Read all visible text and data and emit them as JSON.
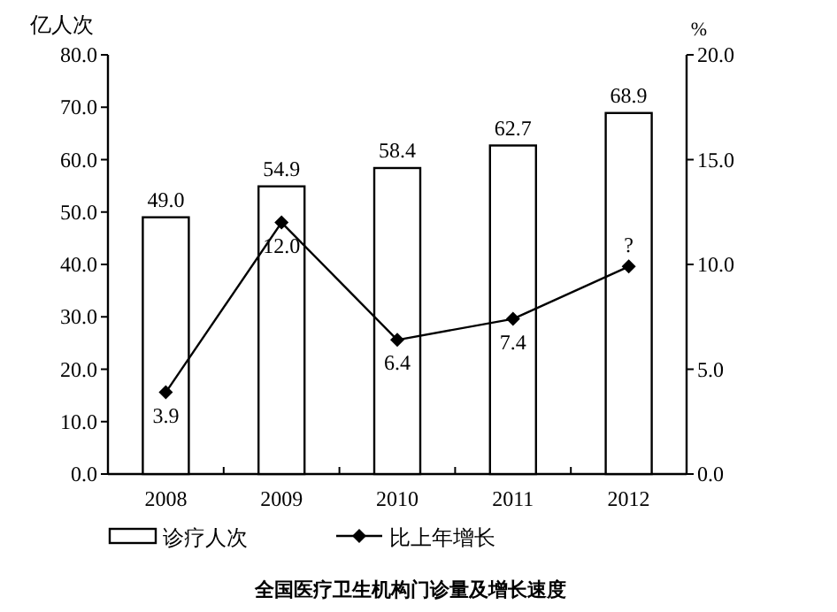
{
  "chart_data": {
    "type": "bar",
    "title": "全国医疗卫生机构门诊量及增长速度",
    "ylabel": "亿人次",
    "y2label": "%",
    "categories": [
      "2008",
      "2009",
      "2010",
      "2011",
      "2012"
    ],
    "ylim": [
      0,
      80
    ],
    "yticks": [
      {
        "value": 0,
        "label": "0.0"
      },
      {
        "value": 10,
        "label": "10.0"
      },
      {
        "value": 20,
        "label": "20.0"
      },
      {
        "value": 30,
        "label": "30.0"
      },
      {
        "value": 40,
        "label": "40.0"
      },
      {
        "value": 50,
        "label": "50.0"
      },
      {
        "value": 60,
        "label": "60.0"
      },
      {
        "value": 70,
        "label": "70.0"
      },
      {
        "value": 80,
        "label": "80.0"
      }
    ],
    "y2lim": [
      0,
      20
    ],
    "y2ticks": [
      {
        "value": 0,
        "label": "0.0"
      },
      {
        "value": 5,
        "label": "5.0"
      },
      {
        "value": 10,
        "label": "10.0"
      },
      {
        "value": 15,
        "label": "15.0"
      },
      {
        "value": 20,
        "label": "20.0"
      }
    ],
    "grid": false,
    "legend": "bottom",
    "series": [
      {
        "name": "诊疗人次",
        "color": "#ffffff",
        "values": [
          49.0,
          54.9,
          58.4,
          62.7,
          68.9
        ],
        "value_labels": [
          "49.0",
          "54.9",
          "58.4",
          "62.7",
          "68.9"
        ]
      },
      {
        "name": "比上年增长",
        "type": "line",
        "axis": "y2",
        "color": "#000000",
        "marker": "diamond",
        "line_style": "solid",
        "values": [
          3.9,
          12.0,
          6.4,
          7.4,
          9.9
        ],
        "value_labels": [
          "3.9",
          "12.0",
          "6.4",
          "7.4",
          "?"
        ]
      }
    ]
  }
}
